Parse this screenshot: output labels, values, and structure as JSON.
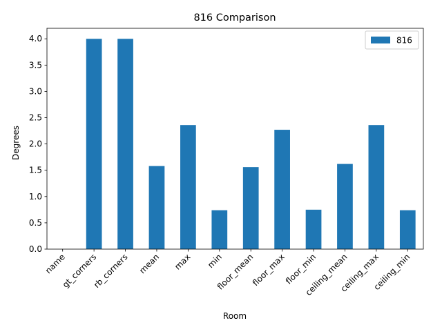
{
  "chart_data": {
    "type": "bar",
    "title": "816 Comparison",
    "xlabel": "Room",
    "ylabel": "Degrees",
    "categories": [
      "name",
      "gt_corners",
      "rb_corners",
      "mean",
      "max",
      "min",
      "floor_mean",
      "floor_max",
      "floor_min",
      "ceiling_mean",
      "ceiling_max",
      "ceiling_min"
    ],
    "series": [
      {
        "name": "816",
        "color": "#1f77b4",
        "values": [
          0,
          4.0,
          4.0,
          1.58,
          2.36,
          0.74,
          1.56,
          2.27,
          0.75,
          1.62,
          2.36,
          0.74
        ]
      }
    ],
    "ylim": [
      0,
      4.2
    ],
    "yticks": [
      "0.0",
      "0.5",
      "1.0",
      "1.5",
      "2.0",
      "2.5",
      "3.0",
      "3.5",
      "4.0"
    ],
    "ytick_values": [
      0,
      0.5,
      1.0,
      1.5,
      2.0,
      2.5,
      3.0,
      3.5,
      4.0
    ],
    "grid": false,
    "legend_position": "top-right",
    "xtick_rotation": 45
  }
}
